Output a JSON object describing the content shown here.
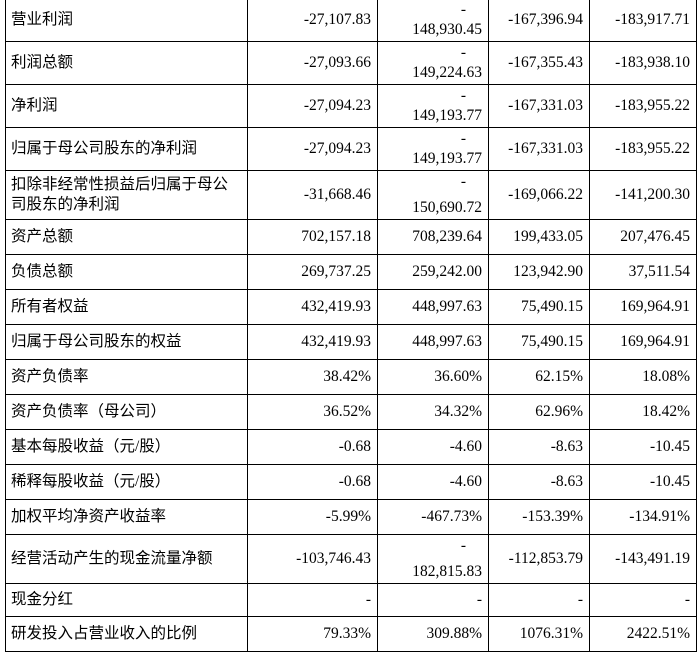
{
  "rows": [
    {
      "label": "营业利润",
      "v": [
        "-27,107.83",
        "148,930.45",
        "-167,396.94",
        "-183,917.71"
      ],
      "split": true
    },
    {
      "label": "利润总额",
      "v": [
        "-27,093.66",
        "149,224.63",
        "-167,355.43",
        "-183,938.10"
      ],
      "split": true
    },
    {
      "label": "净利润",
      "v": [
        "-27,094.23",
        "149,193.77",
        "-167,331.03",
        "-183,955.22"
      ],
      "split": true
    },
    {
      "label": "归属于母公司股东的净利润",
      "v": [
        "-27,094.23",
        "149,193.77",
        "-167,331.03",
        "-183,955.22"
      ],
      "split": true
    },
    {
      "label": "扣除非经常性损益后归属于母公司股东的净利润",
      "v": [
        "-31,668.46",
        "150,690.72",
        "-169,066.22",
        "-141,200.30"
      ],
      "split": true
    },
    {
      "label": "资产总额",
      "v": [
        "702,157.18",
        "708,239.64",
        "199,433.05",
        "207,476.45"
      ]
    },
    {
      "label": "负债总额",
      "v": [
        "269,737.25",
        "259,242.00",
        "123,942.90",
        "37,511.54"
      ]
    },
    {
      "label": "所有者权益",
      "v": [
        "432,419.93",
        "448,997.63",
        "75,490.15",
        "169,964.91"
      ]
    },
    {
      "label": "归属于母公司股东的权益",
      "v": [
        "432,419.93",
        "448,997.63",
        "75,490.15",
        "169,964.91"
      ]
    },
    {
      "label": "资产负债率",
      "v": [
        "38.42%",
        "36.60%",
        "62.15%",
        "18.08%"
      ]
    },
    {
      "label": "资产负债率（母公司）",
      "v": [
        "36.52%",
        "34.32%",
        "62.96%",
        "18.42%"
      ]
    },
    {
      "label": "基本每股收益（元/股）",
      "v": [
        "-0.68",
        "-4.60",
        "-8.63",
        "-10.45"
      ]
    },
    {
      "label": "稀释每股收益（元/股）",
      "v": [
        "-0.68",
        "-4.60",
        "-8.63",
        "-10.45"
      ]
    },
    {
      "label": "加权平均净资产收益率",
      "v": [
        "-5.99%",
        "-467.73%",
        "-153.39%",
        "-134.91%"
      ]
    },
    {
      "label": "经营活动产生的现金流量净额",
      "v": [
        "-103,746.43",
        "182,815.83",
        "-112,853.79",
        "-143,491.19"
      ],
      "split": true
    },
    {
      "label": "现金分红",
      "v": [
        "-",
        "-",
        "-",
        "-"
      ]
    },
    {
      "label": "研发投入占营业收入的比例",
      "v": [
        "79.33%",
        "309.88%",
        "1076.31%",
        "2422.51%"
      ]
    }
  ],
  "split_prefix": "-"
}
